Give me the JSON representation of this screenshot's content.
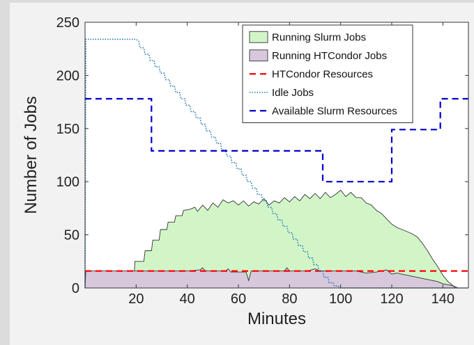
{
  "chart_data": {
    "type": "area",
    "title": "",
    "xlabel": "Minutes",
    "ylabel": "Number of Jobs",
    "xlim": [
      0,
      150
    ],
    "ylim": [
      0,
      250
    ],
    "xticks": [
      20,
      40,
      60,
      80,
      100,
      120,
      140
    ],
    "yticks": [
      0,
      50,
      100,
      150,
      200,
      250
    ],
    "grid": false,
    "legend_position": "top-right",
    "series": [
      {
        "name": "Running Slurm Jobs",
        "style": "filled-area",
        "color": "#d2f5c8",
        "edge_color": "#333333",
        "points": [
          [
            0,
            0
          ],
          [
            19,
            0
          ],
          [
            19.5,
            25
          ],
          [
            23,
            25
          ],
          [
            23.5,
            35
          ],
          [
            26,
            35
          ],
          [
            26.5,
            45
          ],
          [
            29,
            45
          ],
          [
            29.5,
            55
          ],
          [
            32,
            55
          ],
          [
            32.5,
            62
          ],
          [
            35,
            62
          ],
          [
            35.5,
            68
          ],
          [
            38,
            68
          ],
          [
            38.5,
            73
          ],
          [
            41,
            74
          ],
          [
            43,
            76
          ],
          [
            44,
            72
          ],
          [
            46,
            78
          ],
          [
            48,
            73
          ],
          [
            50,
            80
          ],
          [
            52,
            76
          ],
          [
            54,
            83
          ],
          [
            56,
            80
          ],
          [
            58,
            82
          ],
          [
            60,
            78
          ],
          [
            62,
            82
          ],
          [
            64,
            77
          ],
          [
            66,
            81
          ],
          [
            68,
            79
          ],
          [
            70,
            84
          ],
          [
            72,
            78
          ],
          [
            74,
            82
          ],
          [
            76,
            80
          ],
          [
            78,
            85
          ],
          [
            80,
            81
          ],
          [
            82,
            86
          ],
          [
            84,
            82
          ],
          [
            86,
            88
          ],
          [
            88,
            84
          ],
          [
            90,
            89
          ],
          [
            92,
            84
          ],
          [
            94,
            90
          ],
          [
            96,
            85
          ],
          [
            98,
            88
          ],
          [
            100,
            92
          ],
          [
            102,
            86
          ],
          [
            104,
            90
          ],
          [
            106,
            85
          ],
          [
            108,
            85
          ],
          [
            110,
            80
          ],
          [
            112,
            78
          ],
          [
            114,
            73
          ],
          [
            116,
            70
          ],
          [
            118,
            65
          ],
          [
            120,
            60
          ],
          [
            122,
            57
          ],
          [
            124,
            55
          ],
          [
            126,
            53
          ],
          [
            128,
            51
          ],
          [
            130,
            48
          ],
          [
            132,
            42
          ],
          [
            134,
            35
          ],
          [
            136,
            27
          ],
          [
            138,
            20
          ],
          [
            140,
            12
          ],
          [
            142,
            6
          ],
          [
            144,
            2
          ],
          [
            146,
            0
          ]
        ]
      },
      {
        "name": "Running HTCondor Jobs",
        "style": "filled-area",
        "color": "#d8c8dc",
        "edge_color": "#333333",
        "points": [
          [
            0,
            0
          ],
          [
            0.3,
            16
          ],
          [
            40,
            16
          ],
          [
            45,
            17
          ],
          [
            46,
            19
          ],
          [
            47,
            16
          ],
          [
            55,
            16
          ],
          [
            56,
            18
          ],
          [
            57,
            15
          ],
          [
            63,
            15
          ],
          [
            64,
            7
          ],
          [
            65,
            16
          ],
          [
            78,
            16
          ],
          [
            79,
            19
          ],
          [
            80,
            16
          ],
          [
            87,
            16
          ],
          [
            90,
            18
          ],
          [
            92,
            16
          ],
          [
            106,
            16
          ],
          [
            108,
            15
          ],
          [
            110,
            14
          ],
          [
            114,
            15
          ],
          [
            118,
            17
          ],
          [
            120,
            13
          ],
          [
            122,
            14
          ],
          [
            126,
            12
          ],
          [
            130,
            10
          ],
          [
            134,
            8
          ],
          [
            138,
            6
          ],
          [
            140,
            4
          ],
          [
            142,
            3
          ],
          [
            144,
            2
          ],
          [
            145,
            0
          ]
        ]
      },
      {
        "name": "HTCondor Resources",
        "style": "dashed",
        "color": "#ff0000",
        "points": [
          [
            0,
            16
          ],
          [
            150,
            16
          ]
        ]
      },
      {
        "name": "Idle Jobs",
        "style": "dotted",
        "color": "#1f77b4",
        "points": [
          [
            0,
            0
          ],
          [
            0.3,
            234
          ],
          [
            20,
            234
          ],
          [
            21,
            232
          ],
          [
            21.5,
            226
          ],
          [
            23,
            226
          ],
          [
            23.5,
            220
          ],
          [
            25,
            220
          ],
          [
            25.5,
            214
          ],
          [
            27,
            214
          ],
          [
            27.5,
            208
          ],
          [
            29,
            208
          ],
          [
            29.5,
            202
          ],
          [
            31,
            202
          ],
          [
            31.5,
            196
          ],
          [
            33,
            196
          ],
          [
            33.5,
            190
          ],
          [
            35,
            190
          ],
          [
            35.5,
            184
          ],
          [
            37,
            184
          ],
          [
            37.5,
            178
          ],
          [
            39,
            178
          ],
          [
            39.5,
            172
          ],
          [
            41,
            172
          ],
          [
            41.5,
            166
          ],
          [
            43,
            166
          ],
          [
            43.5,
            160
          ],
          [
            45,
            160
          ],
          [
            45.5,
            154
          ],
          [
            47,
            154
          ],
          [
            47.5,
            148
          ],
          [
            49,
            148
          ],
          [
            49.5,
            142
          ],
          [
            51,
            142
          ],
          [
            51.5,
            136
          ],
          [
            53,
            136
          ],
          [
            53.5,
            130
          ],
          [
            55,
            130
          ],
          [
            55.5,
            124
          ],
          [
            57,
            124
          ],
          [
            57.5,
            118
          ],
          [
            59,
            118
          ],
          [
            59.5,
            112
          ],
          [
            61,
            112
          ],
          [
            61.5,
            106
          ],
          [
            63,
            106
          ],
          [
            63.5,
            100
          ],
          [
            65,
            100
          ],
          [
            65.5,
            94
          ],
          [
            67,
            94
          ],
          [
            67.5,
            88
          ],
          [
            69,
            88
          ],
          [
            69.5,
            82
          ],
          [
            71,
            82
          ],
          [
            71.5,
            76
          ],
          [
            73,
            76
          ],
          [
            73.5,
            70
          ],
          [
            75,
            70
          ],
          [
            75.5,
            64
          ],
          [
            77,
            64
          ],
          [
            77.5,
            58
          ],
          [
            79,
            58
          ],
          [
            79.5,
            52
          ],
          [
            81,
            52
          ],
          [
            81.5,
            46
          ],
          [
            83,
            46
          ],
          [
            83.5,
            40
          ],
          [
            85,
            40
          ],
          [
            85.5,
            34
          ],
          [
            87,
            34
          ],
          [
            87.5,
            28
          ],
          [
            89,
            28
          ],
          [
            89.5,
            22
          ],
          [
            91,
            22
          ],
          [
            91.5,
            16
          ],
          [
            93,
            16
          ],
          [
            93.5,
            10
          ],
          [
            95,
            10
          ],
          [
            95.5,
            5
          ],
          [
            97,
            5
          ],
          [
            97.5,
            2
          ],
          [
            99,
            2
          ],
          [
            99.5,
            0
          ],
          [
            150,
            0
          ]
        ]
      },
      {
        "name": "Available Slurm Resources",
        "style": "dashed",
        "color": "#0000cc",
        "points": [
          [
            0,
            178
          ],
          [
            26,
            178
          ],
          [
            26,
            129
          ],
          [
            93,
            129
          ],
          [
            93,
            100
          ],
          [
            120,
            100
          ],
          [
            120,
            149
          ],
          [
            139,
            149
          ],
          [
            139,
            178
          ],
          [
            150,
            178
          ]
        ]
      }
    ]
  },
  "colors": {
    "background": "#dcdcdc",
    "figure": "#f2f2f2",
    "plot_area": "#ffffff"
  }
}
